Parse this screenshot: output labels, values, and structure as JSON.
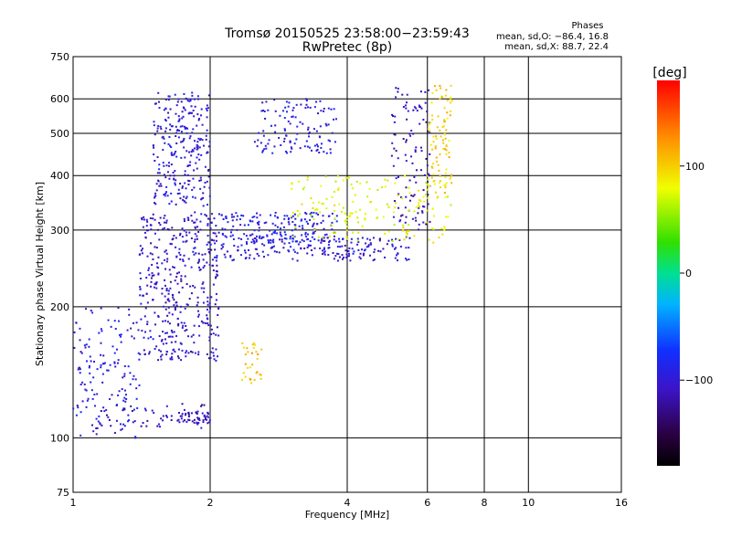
{
  "chart_data": {
    "type": "scatter",
    "title": "Tromsø 20150525 23:58:00−23:59:43",
    "subtitle": "RwPretec (8p)",
    "stats": {
      "heading": "Phases",
      "line_o": "mean, sd,O: −86.4, 16.8",
      "line_x": "mean, sd,X: 88.7, 22.4"
    },
    "xlabel": "Frequency [MHz]",
    "ylabel": "Stationary phase Virtual Height [km]",
    "x_scale": "log",
    "y_scale": "log",
    "xlim": [
      1,
      16
    ],
    "ylim": [
      75,
      750
    ],
    "x_ticks": [
      1,
      2,
      4,
      6,
      8,
      10,
      16
    ],
    "x_tick_labels": [
      "1",
      "2",
      "4",
      "6",
      "8",
      "10",
      "16"
    ],
    "y_ticks": [
      75,
      100,
      200,
      300,
      400,
      500,
      600,
      750
    ],
    "y_tick_labels": [
      "75",
      "100",
      "200",
      "300",
      "400",
      "500",
      "600",
      "750"
    ],
    "grid": true,
    "colorbar": {
      "label": "[deg]",
      "min": -180,
      "max": 180,
      "ticks": [
        100,
        0,
        -100
      ],
      "tick_labels": [
        "100",
        "0",
        "−100"
      ],
      "colormap": "rainbow"
    },
    "series": [
      {
        "phase_deg": -110,
        "x_range": [
          1.1,
          2.0
        ],
        "y_range": [
          105,
          120
        ],
        "points": 60
      },
      {
        "phase_deg": -105,
        "x_range": [
          1.4,
          2.1
        ],
        "y_range": [
          150,
          330
        ],
        "points": 420
      },
      {
        "phase_deg": -100,
        "x_range": [
          1.5,
          2.0
        ],
        "y_range": [
          340,
          620
        ],
        "points": 260
      },
      {
        "phase_deg": -110,
        "x_range": [
          1.7,
          2.0
        ],
        "y_range": [
          108,
          115
        ],
        "points": 40
      },
      {
        "phase_deg": -95,
        "x_range": [
          1.0,
          1.4
        ],
        "y_range": [
          100,
          200
        ],
        "points": 140
      },
      {
        "phase_deg": -90,
        "x_range": [
          2.1,
          3.8
        ],
        "y_range": [
          280,
          330
        ],
        "points": 180
      },
      {
        "phase_deg": -100,
        "x_range": [
          2.0,
          5.5
        ],
        "y_range": [
          255,
          290
        ],
        "points": 200
      },
      {
        "phase_deg": -95,
        "x_range": [
          2.5,
          3.8
        ],
        "y_range": [
          450,
          600
        ],
        "points": 120
      },
      {
        "phase_deg": -110,
        "x_range": [
          5.0,
          6.1
        ],
        "y_range": [
          300,
          640
        ],
        "points": 110
      },
      {
        "phase_deg": 80,
        "x_range": [
          3.0,
          6.8
        ],
        "y_range": [
          280,
          400
        ],
        "points": 170
      },
      {
        "phase_deg": 100,
        "x_range": [
          6.0,
          6.8
        ],
        "y_range": [
          350,
          650
        ],
        "points": 90
      },
      {
        "phase_deg": 110,
        "x_range": [
          2.35,
          2.6
        ],
        "y_range": [
          130,
          165
        ],
        "points": 30
      }
    ]
  }
}
